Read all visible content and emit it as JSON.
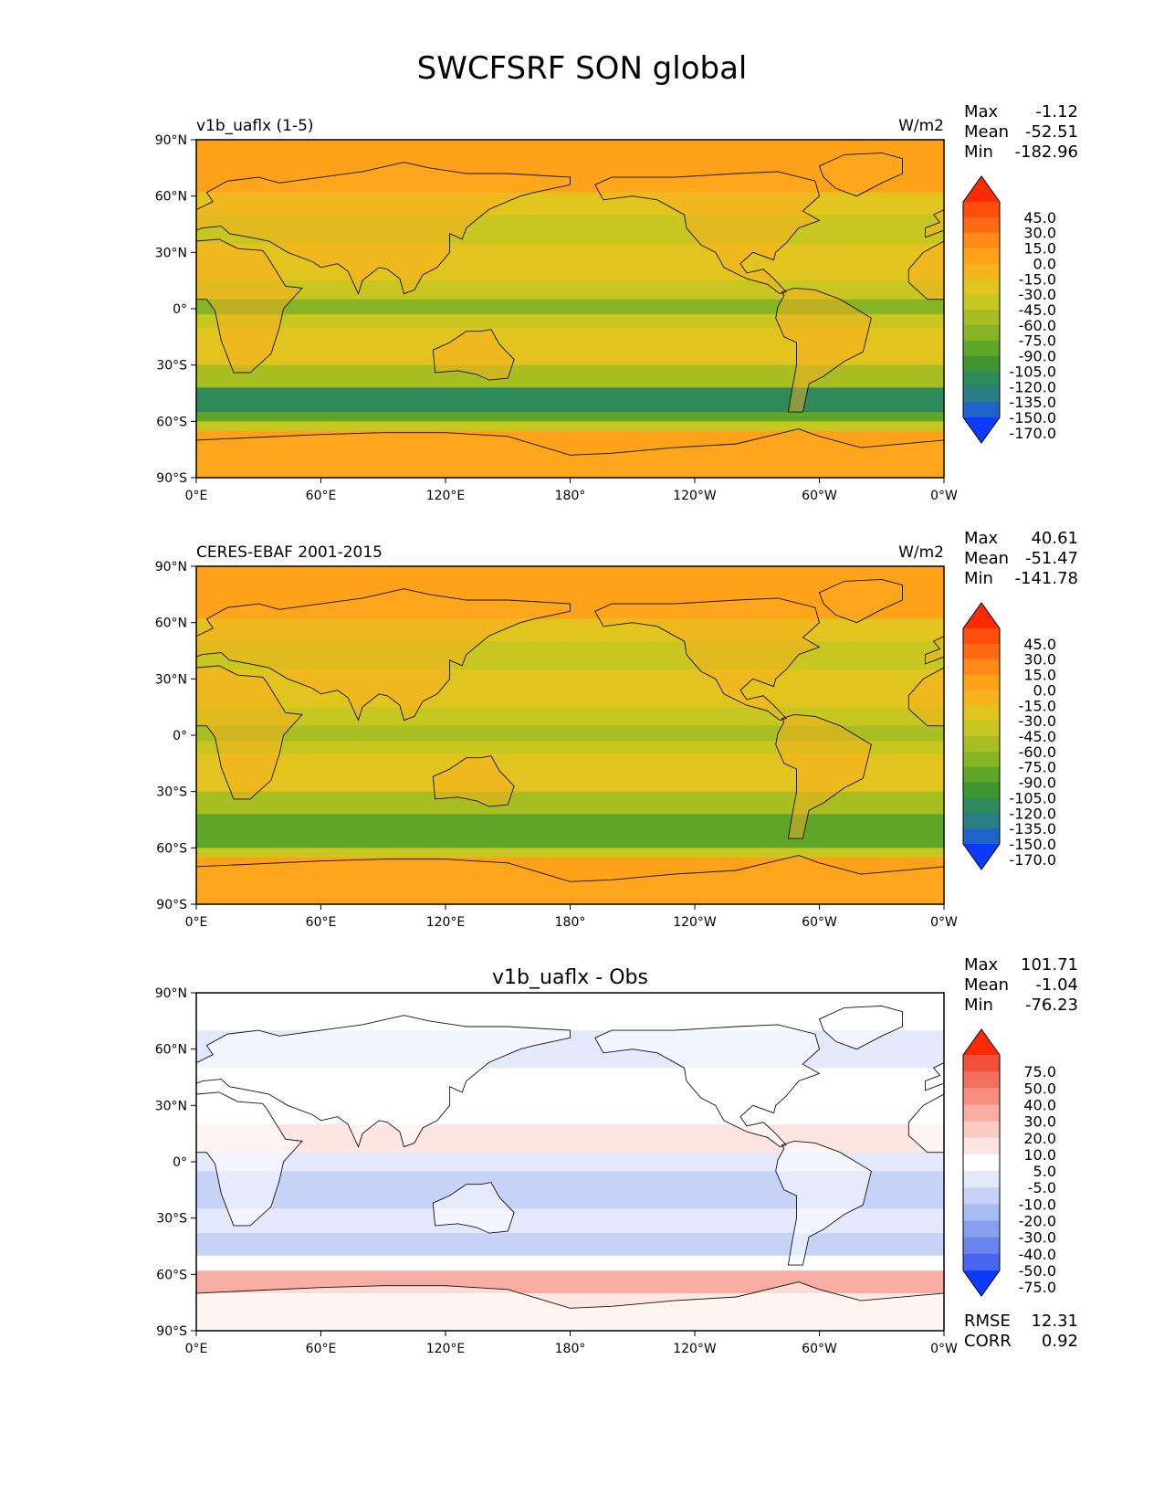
{
  "figure": {
    "title": "SWCFSRF SON global"
  },
  "panels": [
    {
      "left_label": "v1b_uaflx (1-5)",
      "center_label": "",
      "units": "W/m2",
      "stats": [
        {
          "label": "Max",
          "value": "-1.12"
        },
        {
          "label": "Mean",
          "value": "-52.51"
        },
        {
          "label": "Min",
          "value": "-182.96"
        }
      ],
      "colorbar": {
        "labels": [
          "45.0",
          "30.0",
          "15.0",
          "0.0",
          "-15.0",
          "-30.0",
          "-45.0",
          "-60.0",
          "-75.0",
          "-90.0",
          "-105.0",
          "-120.0",
          "-135.0",
          "-150.0",
          "-170.0"
        ],
        "colors": [
          "#ff2a00",
          "#ff4d0d",
          "#ff6a12",
          "#ff8a17",
          "#ffa21a",
          "#f7b21c",
          "#e2c41f",
          "#c8c620",
          "#a8be22",
          "#86b424",
          "#5fa628",
          "#3f9631",
          "#2e8a5a",
          "#2a7e86",
          "#1f63c8",
          "#0a3cff"
        ]
      },
      "extra_stats": []
    },
    {
      "left_label": "CERES-EBAF 2001-2015",
      "center_label": "",
      "units": "W/m2",
      "stats": [
        {
          "label": "Max",
          "value": "40.61"
        },
        {
          "label": "Mean",
          "value": "-51.47"
        },
        {
          "label": "Min",
          "value": "-141.78"
        }
      ],
      "colorbar": {
        "labels": [
          "45.0",
          "30.0",
          "15.0",
          "0.0",
          "-15.0",
          "-30.0",
          "-45.0",
          "-60.0",
          "-75.0",
          "-90.0",
          "-105.0",
          "-120.0",
          "-135.0",
          "-150.0",
          "-170.0"
        ],
        "colors": [
          "#ff2a00",
          "#ff4d0d",
          "#ff6a12",
          "#ff8a17",
          "#ffa21a",
          "#f7b21c",
          "#e2c41f",
          "#c8c620",
          "#a8be22",
          "#86b424",
          "#5fa628",
          "#3f9631",
          "#2e8a5a",
          "#2a7e86",
          "#1f63c8",
          "#0a3cff"
        ]
      },
      "extra_stats": []
    },
    {
      "left_label": "",
      "center_label": "v1b_uaflx - Obs",
      "units": "",
      "stats": [
        {
          "label": "Max",
          "value": "101.71"
        },
        {
          "label": "Mean",
          "value": "-1.04"
        },
        {
          "label": "Min",
          "value": "-76.23"
        }
      ],
      "colorbar": {
        "labels": [
          "75.0",
          "50.0",
          "40.0",
          "30.0",
          "20.0",
          "10.0",
          "5.0",
          "-5.0",
          "-10.0",
          "-20.0",
          "-30.0",
          "-40.0",
          "-50.0",
          "-75.0"
        ],
        "colors": [
          "#ff2a00",
          "#f2503a",
          "#f2705e",
          "#f58f80",
          "#f8ada2",
          "#fbcac2",
          "#fde6e2",
          "#ffffff",
          "#e3e9fb",
          "#c6d3f7",
          "#a7bdf2",
          "#879fee",
          "#6984ec",
          "#4966ee",
          "#0a3cff"
        ]
      },
      "extra_stats": [
        {
          "label": "RMSE",
          "value": "12.31"
        },
        {
          "label": "CORR",
          "value": "0.92"
        }
      ]
    }
  ],
  "axes": {
    "lat_ticks": [
      "90°N",
      "60°N",
      "30°N",
      "0°",
      "30°S",
      "60°S",
      "90°S"
    ],
    "lon_ticks": [
      "0°E",
      "60°E",
      "120°E",
      "180°",
      "120°W",
      "60°W",
      "0°W"
    ]
  }
}
